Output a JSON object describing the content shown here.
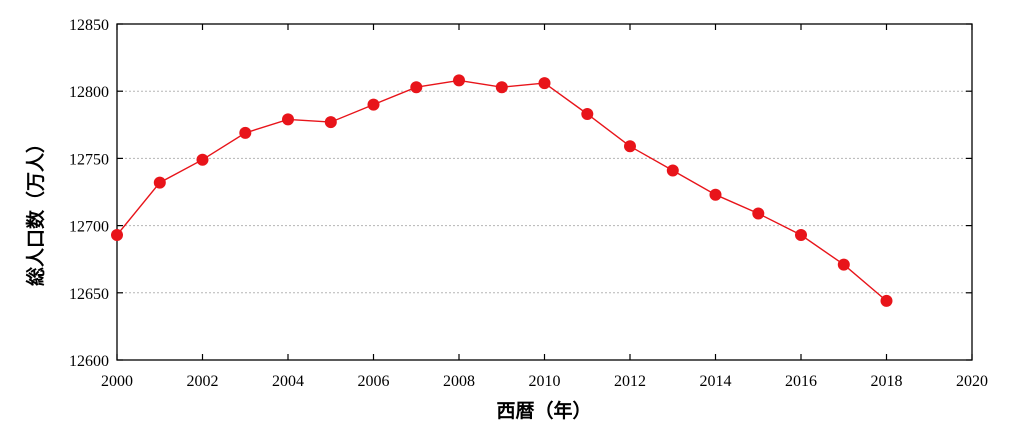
{
  "chart_data": {
    "type": "line",
    "title": "",
    "xlabel": "西暦（年）",
    "ylabel": "総人口数（万人）",
    "xlim": [
      2000,
      2020
    ],
    "ylim": [
      12600,
      12850
    ],
    "x_ticks": [
      "2000",
      "2002",
      "2004",
      "2006",
      "2008",
      "2010",
      "2012",
      "2014",
      "2016",
      "2018",
      "2020"
    ],
    "y_ticks": [
      "12600",
      "12650",
      "12700",
      "12750",
      "12800",
      "12850"
    ],
    "grid": "horizontal dotted",
    "legend": "none",
    "series": [
      {
        "color": "#e8141a",
        "marker": "circle",
        "x": [
          2000,
          2001,
          2002,
          2003,
          2004,
          2005,
          2006,
          2007,
          2008,
          2009,
          2010,
          2011,
          2012,
          2013,
          2014,
          2015,
          2016,
          2017,
          2018
        ],
        "y": [
          12693,
          12732,
          12749,
          12769,
          12779,
          12777,
          12790,
          12803,
          12808,
          12803,
          12806,
          12783,
          12759,
          12741,
          12723,
          12709,
          12693,
          12671,
          12644
        ]
      }
    ]
  }
}
